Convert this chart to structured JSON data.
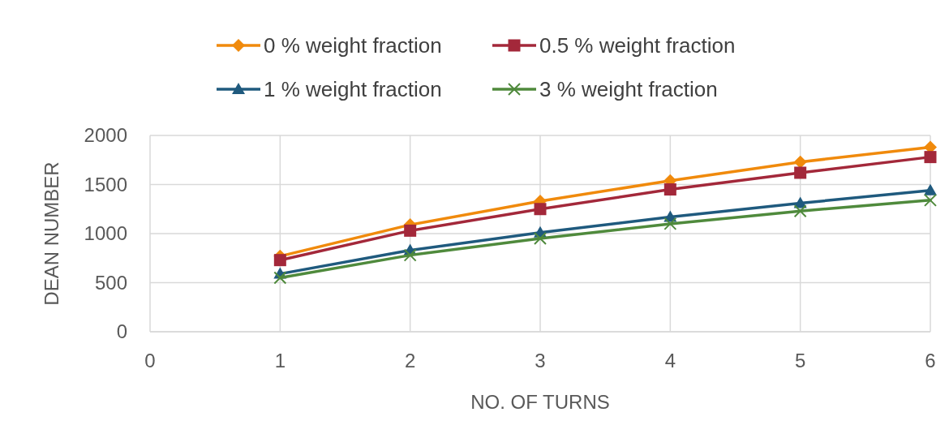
{
  "chart_data": {
    "type": "line",
    "xlabel": "NO. OF TURNS",
    "ylabel": "DEAN NUMBER",
    "x": [
      1,
      2,
      3,
      4,
      5,
      6
    ],
    "series": [
      {
        "name": "0 % weight fraction",
        "color": "#f08a0c",
        "marker": "diamond",
        "values": [
          770,
          1090,
          1330,
          1540,
          1730,
          1880
        ]
      },
      {
        "name": "0.5 % weight fraction",
        "color": "#a3283a",
        "marker": "square",
        "values": [
          730,
          1030,
          1250,
          1450,
          1620,
          1780
        ]
      },
      {
        "name": "1 % weight fraction",
        "color": "#1f5a7e",
        "marker": "triangle",
        "values": [
          590,
          830,
          1010,
          1170,
          1310,
          1440
        ]
      },
      {
        "name": "3 % weight fraction",
        "color": "#4f8a3c",
        "marker": "cross",
        "values": [
          550,
          780,
          950,
          1100,
          1230,
          1340
        ]
      }
    ],
    "xlim": [
      0,
      6
    ],
    "xticks": [
      0,
      1,
      2,
      3,
      4,
      5,
      6
    ],
    "ylim": [
      0,
      2000
    ],
    "yticks": [
      0,
      500,
      1000,
      1500,
      2000
    ],
    "grid": true,
    "legend": "top",
    "line_style": "solid"
  }
}
